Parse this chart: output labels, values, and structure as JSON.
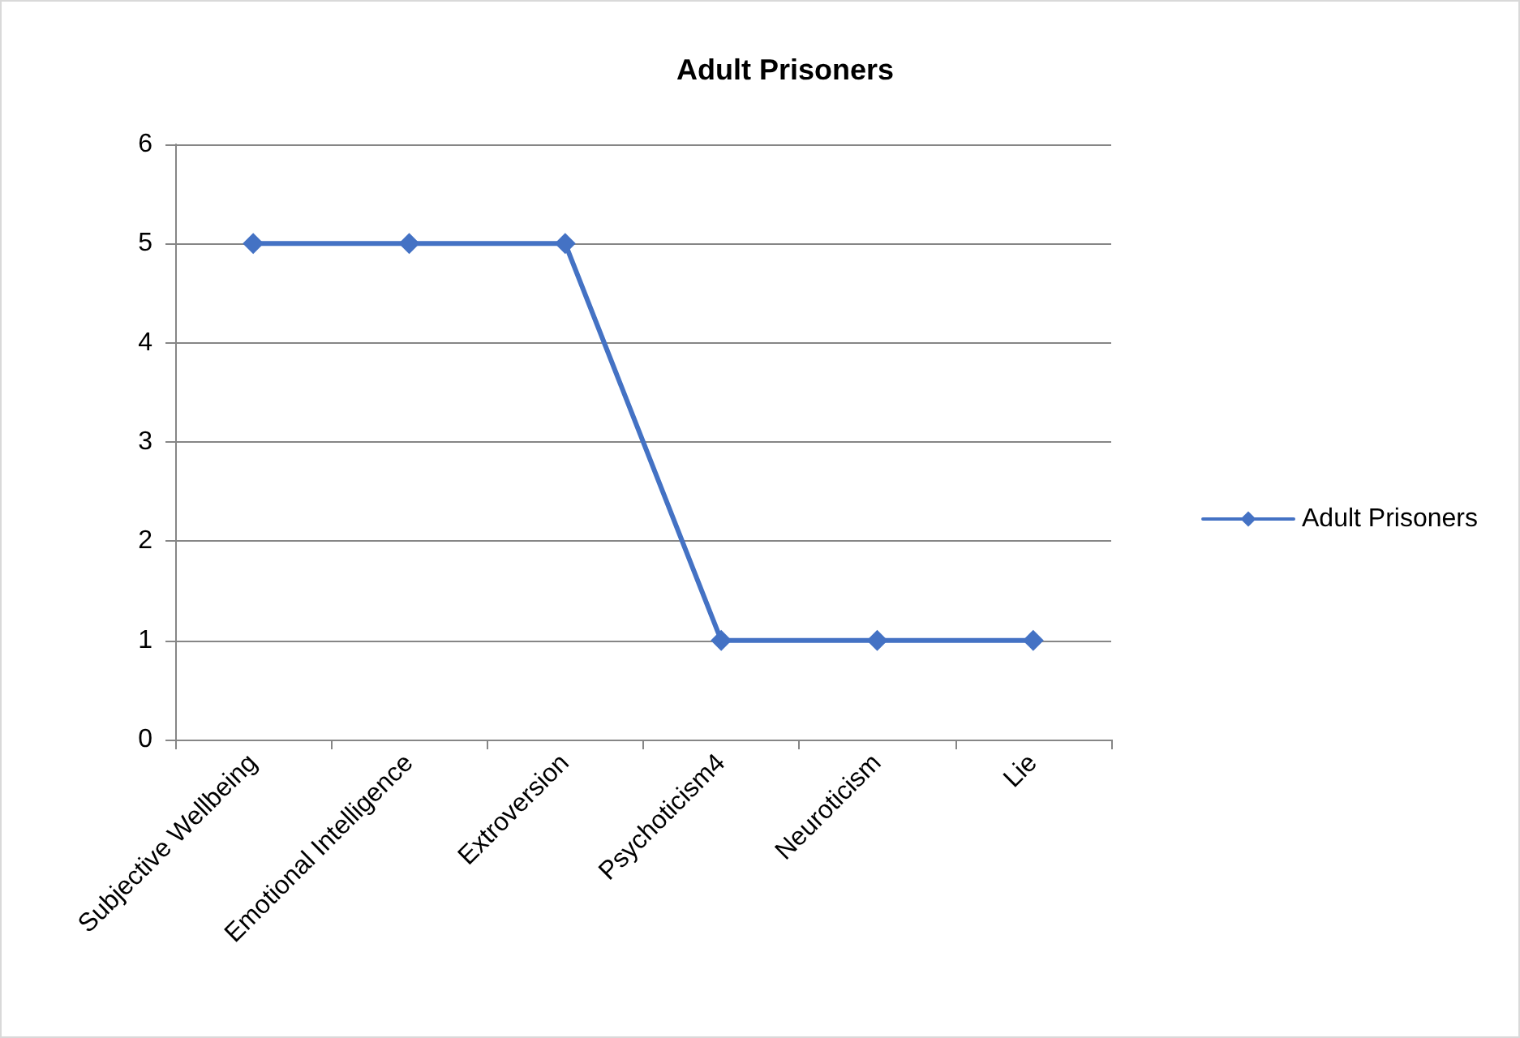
{
  "chart_data": {
    "type": "line",
    "title": "Adult Prisoners",
    "categories": [
      "Subjective Wellbeing",
      "Emotional Intelligence",
      "Extroversion",
      "Psychoticism4",
      "Neuroticism",
      "Lie"
    ],
    "series": [
      {
        "name": "Adult Prisoners",
        "color": "#4472c4",
        "values": [
          5,
          5,
          5,
          1,
          1,
          1
        ]
      }
    ],
    "ylim": [
      0,
      6
    ],
    "yticks": [
      0,
      1,
      2,
      3,
      4,
      5,
      6
    ],
    "grid": "y",
    "legend": "right",
    "marker": "diamond",
    "line_style": "solid"
  }
}
